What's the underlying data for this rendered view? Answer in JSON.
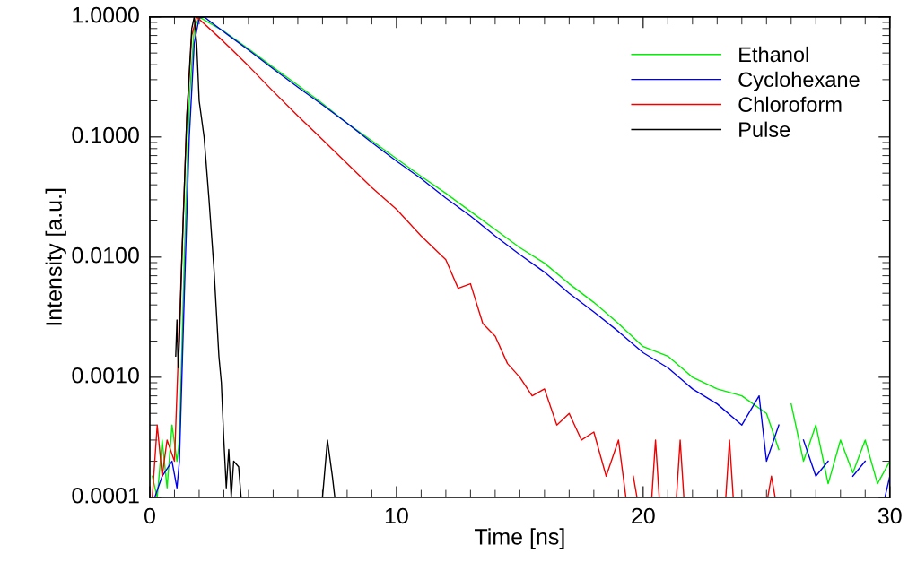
{
  "chart_data": {
    "type": "line",
    "xlabel": "Time [ns]",
    "ylabel": "Intensity [a.u.]",
    "log": "y",
    "xlim": [
      0,
      30
    ],
    "xticks": [
      0,
      10,
      20,
      30
    ],
    "ylim": [
      0.0001,
      1.0
    ],
    "yticks": [
      {
        "value": 0.0001,
        "label": "0.0001"
      },
      {
        "value": 0.001,
        "label": "0.0010"
      },
      {
        "value": 0.01,
        "label": "0.0100"
      },
      {
        "value": 0.1,
        "label": "0.1000"
      },
      {
        "value": 1.0,
        "label": "1.0000"
      }
    ],
    "grid": false,
    "legend": "top right",
    "marker": "none",
    "line_style": "solid",
    "series": [
      {
        "name": "Ethanol",
        "color": "#00ee00",
        "x": [
          0.1,
          0.3,
          0.5,
          0.7,
          0.9,
          1.1,
          1.2,
          1.4,
          1.6,
          1.8,
          2.0,
          3,
          4,
          5,
          6,
          7,
          8,
          9,
          10,
          11,
          12,
          13,
          14,
          15,
          16,
          17,
          18,
          19,
          20,
          21,
          22,
          23,
          24,
          25,
          25.5,
          25.8,
          26,
          26.5,
          27,
          27.5,
          28,
          28.5,
          29,
          29.5,
          30
        ],
        "values": [
          0.00015,
          0.0001,
          0.0003,
          0.00012,
          0.0004,
          0.0002,
          0.0003,
          0.01,
          0.2,
          0.8,
          1.0,
          0.76,
          0.54,
          0.38,
          0.27,
          0.19,
          0.13,
          0.093,
          0.066,
          0.047,
          0.034,
          0.024,
          0.017,
          0.012,
          0.0089,
          0.006,
          0.0042,
          0.0028,
          0.0018,
          0.0015,
          0.001,
          0.0008,
          0.0007,
          0.0005,
          0.00025,
          null,
          0.0006,
          0.0002,
          0.0004,
          0.00013,
          0.0003,
          0.00016,
          0.0003,
          0.00013,
          0.0002
        ]
      },
      {
        "name": "Cyclohexane",
        "color": "#0000ee",
        "x": [
          0.2,
          0.5,
          0.9,
          1.1,
          1.2,
          1.4,
          1.6,
          1.8,
          2.0,
          2.2,
          3,
          4,
          5,
          6,
          7,
          8,
          9,
          10,
          11,
          12,
          13,
          14,
          15,
          16,
          17,
          18,
          19,
          20,
          21,
          22,
          23,
          24,
          24.7,
          25,
          25.5,
          26,
          26.5,
          27,
          27.5,
          28,
          28.5,
          29,
          29.5,
          29.8,
          30
        ],
        "values": [
          0.0001,
          0.00015,
          0.0002,
          0.00012,
          0.0002,
          0.005,
          0.1,
          0.6,
          0.98,
          1.0,
          0.75,
          0.53,
          0.37,
          0.26,
          0.185,
          0.13,
          0.09,
          0.063,
          0.045,
          0.031,
          0.022,
          0.015,
          0.0105,
          0.0075,
          0.005,
          0.0035,
          0.0024,
          0.0016,
          0.0012,
          0.0008,
          0.0006,
          0.0004,
          0.0007,
          0.0002,
          0.0004,
          null,
          0.0003,
          0.00015,
          0.0002,
          null,
          0.00015,
          0.0002,
          null,
          0.0001,
          0.00015
        ]
      },
      {
        "name": "Chloroform",
        "color": "#ee0000",
        "x": [
          0.1,
          0.3,
          0.5,
          0.7,
          1.0,
          1.3,
          1.5,
          1.7,
          1.9,
          3,
          4,
          5,
          6,
          7,
          8,
          9,
          10,
          11,
          12,
          12.5,
          13,
          13.5,
          14,
          14.5,
          15,
          15.5,
          16,
          16.5,
          17,
          17.5,
          18,
          18.5,
          19,
          19.3,
          19.4,
          19.6,
          19.75,
          20,
          20.35,
          20.5,
          20.65,
          21,
          21.35,
          21.5,
          21.65,
          22,
          23.35,
          23.5,
          23.65,
          24,
          25.05,
          25.2,
          25.35
        ],
        "values": [
          0.0001,
          0.0004,
          0.00015,
          0.0003,
          0.0002,
          0.01,
          0.15,
          0.7,
          1.0,
          0.62,
          0.39,
          0.24,
          0.15,
          0.095,
          0.06,
          0.038,
          0.025,
          0.015,
          0.0095,
          0.0055,
          0.006,
          0.0028,
          0.0022,
          0.0013,
          0.001,
          0.0007,
          0.0008,
          0.0004,
          0.0005,
          0.0003,
          0.00035,
          0.00015,
          0.0003,
          0.0001,
          null,
          0.00015,
          0.0001,
          null,
          0.0001,
          0.0003,
          0.0001,
          null,
          0.0001,
          0.0003,
          0.0001,
          null,
          0.0001,
          0.0003,
          0.0001,
          null,
          0.0001,
          0.00015,
          0.0001
        ]
      },
      {
        "name": "Pulse",
        "color": "#000000",
        "x": [
          1.05,
          1.1,
          1.15,
          1.2,
          1.3,
          1.5,
          1.7,
          1.8,
          1.9,
          2.0,
          2.2,
          2.4,
          2.6,
          2.8,
          2.9,
          3.0,
          3.1,
          3.2,
          3.3,
          3.4,
          3.6,
          3.7,
          5.0,
          7.0,
          7.2,
          7.4,
          7.5
        ],
        "values": [
          0.0015,
          0.003,
          0.0012,
          0.002,
          0.01,
          0.15,
          0.8,
          1.0,
          0.6,
          0.2,
          0.1,
          0.03,
          0.008,
          0.0015,
          0.0009,
          0.0003,
          0.00012,
          0.00025,
          0.0001,
          0.0002,
          0.00018,
          0.0001,
          null,
          0.0001,
          0.0003,
          0.00015,
          0.0001
        ]
      }
    ]
  }
}
